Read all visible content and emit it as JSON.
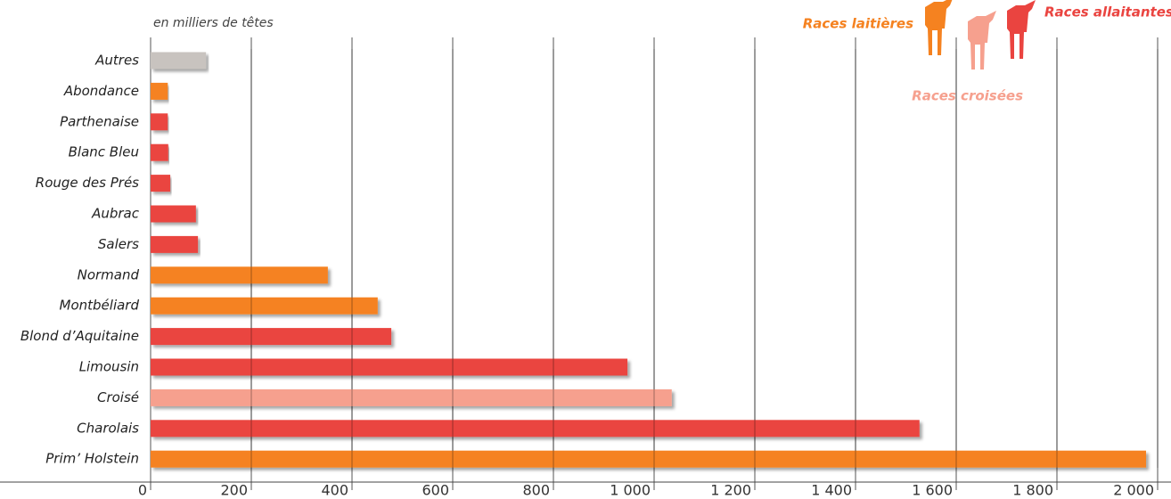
{
  "chart_data": {
    "type": "bar",
    "orientation": "horizontal",
    "subtitle": "en milliers de têtes",
    "categories": [
      "Autres",
      "Abondance",
      "Parthenaise",
      "Blanc Bleu",
      "Rouge des Prés",
      "Aubrac",
      "Salers",
      "Normand",
      "Montbéliard",
      "Blond d’Aquitaine",
      "Limousin",
      "Croisé",
      "Charolais",
      "Prim’ Holstein"
    ],
    "values": [
      110,
      34,
      34,
      35,
      39,
      90,
      94,
      352,
      451,
      478,
      947,
      1035,
      1527,
      1977
    ],
    "colors": [
      "#c8c3bf",
      "#f58220",
      "#ea4440",
      "#ea4440",
      "#ea4440",
      "#ea4440",
      "#ea4440",
      "#f58220",
      "#f58220",
      "#ea4440",
      "#ea4440",
      "#f6a08e",
      "#ea4440",
      "#f58220"
    ],
    "legend": [
      {
        "name": "Races laitières",
        "color": "#f58220"
      },
      {
        "name": "Races croisées",
        "color": "#f6a08e"
      },
      {
        "name": "Races allaitantes",
        "color": "#ea4440"
      }
    ],
    "xlim": [
      0,
      2000
    ],
    "xticks": [
      0,
      200,
      400,
      600,
      800,
      {
        "value": 1000,
        "label": "1 000"
      },
      {
        "value": 1200,
        "label": "1 200"
      },
      {
        "value": 1400,
        "label": "1 400"
      },
      {
        "value": 1600,
        "label": "1 600"
      },
      {
        "value": 1800,
        "label": "1 800"
      },
      {
        "value": 2000,
        "label": "2 000"
      }
    ],
    "grid": true
  }
}
